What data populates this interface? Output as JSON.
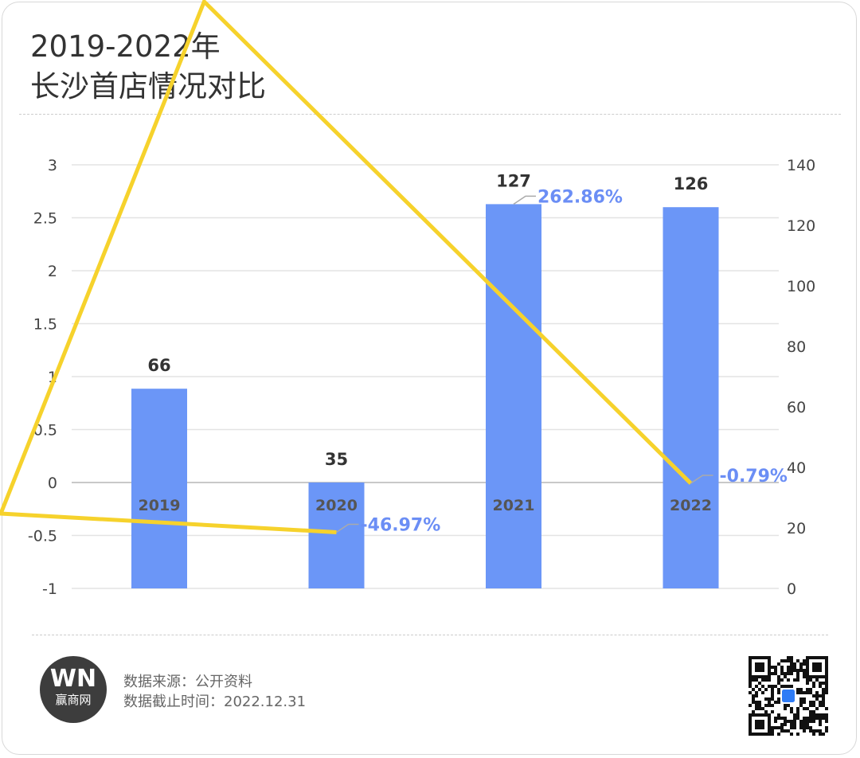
{
  "title_line1": "2019-2022年",
  "title_line2": "长沙首店情况对比",
  "footer": {
    "source": "数据来源：公开资料",
    "date": "数据截止时间：2022.12.31",
    "logo_text": "赢商网",
    "logo_mark": "WN"
  },
  "chart_data": {
    "type": "bar+line",
    "categories": [
      "2019",
      "2020",
      "2021",
      "2022"
    ],
    "series": [
      {
        "type": "bar",
        "axis": "right",
        "values": [
          66,
          35,
          127,
          126
        ],
        "labels": [
          "66",
          "35",
          "127",
          "126"
        ],
        "color": "#6b96f7"
      },
      {
        "type": "line",
        "axis": "left",
        "values": [
          null,
          -0.4697,
          2.6286,
          -0.0079
        ],
        "labels": [
          "",
          "-46.97%",
          "262.86%",
          "-0.79%"
        ],
        "color": "#f6d22c"
      }
    ],
    "left_axis": {
      "ylim": [
        -1,
        3
      ],
      "ticks": [
        "3",
        "2.5",
        "2",
        "1.5",
        "1",
        "0.5",
        "0",
        "-0.5",
        "-1"
      ]
    },
    "right_axis": {
      "ylim": [
        0,
        140
      ],
      "ticks": [
        "140",
        "120",
        "100",
        "80",
        "60",
        "40",
        "20",
        "0"
      ]
    },
    "grid": true,
    "label_color": "#6b8ef5"
  }
}
